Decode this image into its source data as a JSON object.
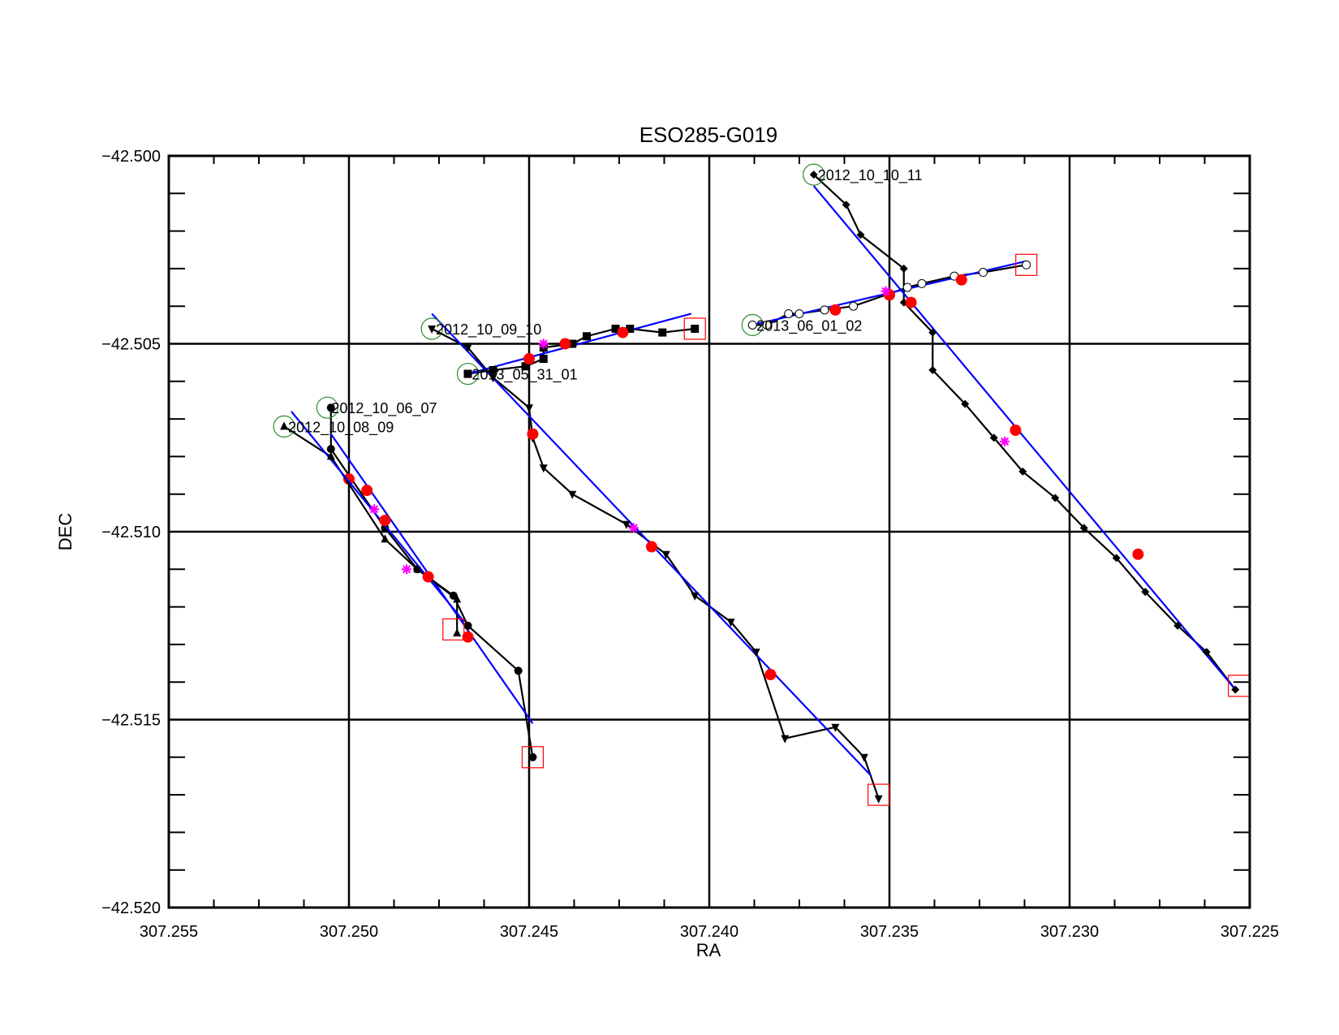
{
  "chart_data": {
    "type": "scatter",
    "title": "ESO285-G019",
    "xlabel": "RA",
    "ylabel": "DEC",
    "xlim": [
      307.255,
      307.225
    ],
    "ylim": [
      -42.52,
      -42.5
    ],
    "x_reversed": true,
    "x_ticks": [
      "307.255",
      "307.250",
      "307.245",
      "307.240",
      "307.235",
      "307.230",
      "307.225"
    ],
    "y_ticks": [
      "-42.520",
      "-42.515",
      "-42.510",
      "-42.505",
      "-42.500"
    ],
    "grid_x": [
      307.25,
      307.245,
      307.24,
      307.235,
      307.23
    ],
    "grid_y": [
      -42.505,
      -42.51,
      -42.515
    ],
    "colors": {
      "track": "#000000",
      "fit": "#0000ff",
      "red_points": "#ff0000",
      "magenta_points": "#ff00ff",
      "start_circle": "#2e8b2e",
      "end_square": "#ff0000"
    },
    "series": [
      {
        "name": "2012_10_06_07",
        "marker": "circle",
        "points": [
          [
            307.2505,
            -42.5067
          ],
          [
            307.2505,
            -42.5078
          ],
          [
            307.249,
            -42.5099
          ],
          [
            307.2481,
            -42.511
          ],
          [
            307.2471,
            -42.5117
          ],
          [
            307.2467,
            -42.5125
          ],
          [
            307.2453,
            -42.5137
          ],
          [
            307.2449,
            -42.516
          ]
        ],
        "fit": [
          [
            307.2505,
            -42.5074
          ],
          [
            307.2449,
            -42.5151
          ]
        ],
        "red": [
          [
            307.25,
            -42.5086
          ],
          [
            307.2467,
            -42.5128
          ]
        ],
        "magenta": [],
        "start": [
          307.2506,
          -42.5067
        ],
        "end": [
          307.2449,
          -42.516
        ]
      },
      {
        "name": "2012_10_08_09",
        "marker": "triangle-up",
        "points": [
          [
            307.2518,
            -42.5072
          ],
          [
            307.2505,
            -42.508
          ],
          [
            307.249,
            -42.5102
          ],
          [
            307.2481,
            -42.511
          ],
          [
            307.247,
            -42.5118
          ],
          [
            307.247,
            -42.5127
          ]
        ],
        "fit": [
          [
            307.2516,
            -42.5068
          ],
          [
            307.2468,
            -42.5124
          ]
        ],
        "red": [
          [
            307.2495,
            -42.5089
          ],
          [
            307.249,
            -42.5097
          ],
          [
            307.2478,
            -42.5112
          ]
        ],
        "magenta": [
          [
            307.2493,
            -42.5094
          ],
          [
            307.2484,
            -42.511
          ]
        ],
        "start": [
          307.2518,
          -42.5072
        ],
        "end": [
          307.2471,
          -42.5126
        ]
      },
      {
        "name": "2012_10_09_10",
        "marker": "triangle-down",
        "points": [
          [
            307.2477,
            -42.5046
          ],
          [
            307.2467,
            -42.5051
          ],
          [
            307.246,
            -42.5059
          ],
          [
            307.245,
            -42.5067
          ],
          [
            307.2449,
            -42.5075
          ],
          [
            307.2446,
            -42.5083
          ],
          [
            307.2438,
            -42.509
          ],
          [
            307.2423,
            -42.5098
          ],
          [
            307.2412,
            -42.5106
          ],
          [
            307.2404,
            -42.5117
          ],
          [
            307.2394,
            -42.5124
          ],
          [
            307.2387,
            -42.5132
          ],
          [
            307.2379,
            -42.5155
          ],
          [
            307.2365,
            -42.5152
          ],
          [
            307.2357,
            -42.516
          ],
          [
            307.2353,
            -42.5171
          ]
        ],
        "fit": [
          [
            307.2477,
            -42.5042
          ],
          [
            307.2355,
            -42.5165
          ]
        ],
        "red": [
          [
            307.2449,
            -42.5074
          ],
          [
            307.2416,
            -42.5104
          ],
          [
            307.2383,
            -42.5138
          ]
        ],
        "magenta": [
          [
            307.2421,
            -42.5099
          ]
        ],
        "start": [
          307.2477,
          -42.5046
        ],
        "end": [
          307.2353,
          -42.517
        ]
      },
      {
        "name": "2013_05_31_01",
        "marker": "square",
        "points": [
          [
            307.2467,
            -42.5058
          ],
          [
            307.246,
            -42.5057
          ],
          [
            307.2451,
            -42.5056
          ],
          [
            307.2446,
            -42.5054
          ],
          [
            307.2446,
            -42.5051
          ],
          [
            307.2438,
            -42.505
          ],
          [
            307.2434,
            -42.5048
          ],
          [
            307.2426,
            -42.5046
          ],
          [
            307.2422,
            -42.5046
          ],
          [
            307.2413,
            -42.5047
          ],
          [
            307.2404,
            -42.5046
          ]
        ],
        "fit": [
          [
            307.2467,
            -42.5058
          ],
          [
            307.2405,
            -42.5042
          ]
        ],
        "red": [
          [
            307.245,
            -42.5054
          ],
          [
            307.244,
            -42.505
          ],
          [
            307.2424,
            -42.5047
          ]
        ],
        "magenta": [
          [
            307.2446,
            -42.505
          ]
        ],
        "start": [
          307.2467,
          -42.5058
        ],
        "end": [
          307.2404,
          -42.5046
        ]
      },
      {
        "name": "2012_10_10_11",
        "marker": "diamond",
        "points": [
          [
            307.2371,
            -42.5005
          ],
          [
            307.2362,
            -42.5013
          ],
          [
            307.2358,
            -42.5021
          ],
          [
            307.2346,
            -42.503
          ],
          [
            307.2346,
            -42.5039
          ],
          [
            307.2338,
            -42.5047
          ],
          [
            307.2338,
            -42.5057
          ],
          [
            307.2329,
            -42.5066
          ],
          [
            307.2321,
            -42.5075
          ],
          [
            307.2313,
            -42.5084
          ],
          [
            307.2304,
            -42.5091
          ],
          [
            307.2296,
            -42.5099
          ],
          [
            307.2287,
            -42.5107
          ],
          [
            307.2279,
            -42.5116
          ],
          [
            307.227,
            -42.5125
          ],
          [
            307.2262,
            -42.5132
          ],
          [
            307.2254,
            -42.5142
          ]
        ],
        "fit": [
          [
            307.2371,
            -42.5008
          ],
          [
            307.2254,
            -42.5142
          ]
        ],
        "red": [
          [
            307.235,
            -42.5037
          ],
          [
            307.2344,
            -42.5039
          ],
          [
            307.2315,
            -42.5073
          ],
          [
            307.2281,
            -42.5106
          ]
        ],
        "magenta": [
          [
            307.2318,
            -42.5076
          ]
        ],
        "start": [
          307.2371,
          -42.5005
        ],
        "end": [
          307.2253,
          -42.5141
        ]
      },
      {
        "name": "2013_06_01_02",
        "marker": "open-circle",
        "points": [
          [
            307.2388,
            -42.5045
          ],
          [
            307.2384,
            -42.5045
          ],
          [
            307.2378,
            -42.5042
          ],
          [
            307.2375,
            -42.5042
          ],
          [
            307.2368,
            -42.5041
          ],
          [
            307.236,
            -42.504
          ],
          [
            307.2345,
            -42.5035
          ],
          [
            307.2341,
            -42.5034
          ],
          [
            307.2332,
            -42.5032
          ],
          [
            307.2324,
            -42.5031
          ],
          [
            307.2312,
            -42.5029
          ]
        ],
        "fit": [
          [
            307.2388,
            -42.5045
          ],
          [
            307.2312,
            -42.5028
          ]
        ],
        "red": [
          [
            307.2365,
            -42.5041
          ],
          [
            307.235,
            -42.5037
          ],
          [
            307.233,
            -42.5033
          ]
        ],
        "magenta": [
          [
            307.2351,
            -42.5036
          ]
        ],
        "start": [
          307.2388,
          -42.5045
        ],
        "end": [
          307.2312,
          -42.5029
        ]
      }
    ]
  }
}
